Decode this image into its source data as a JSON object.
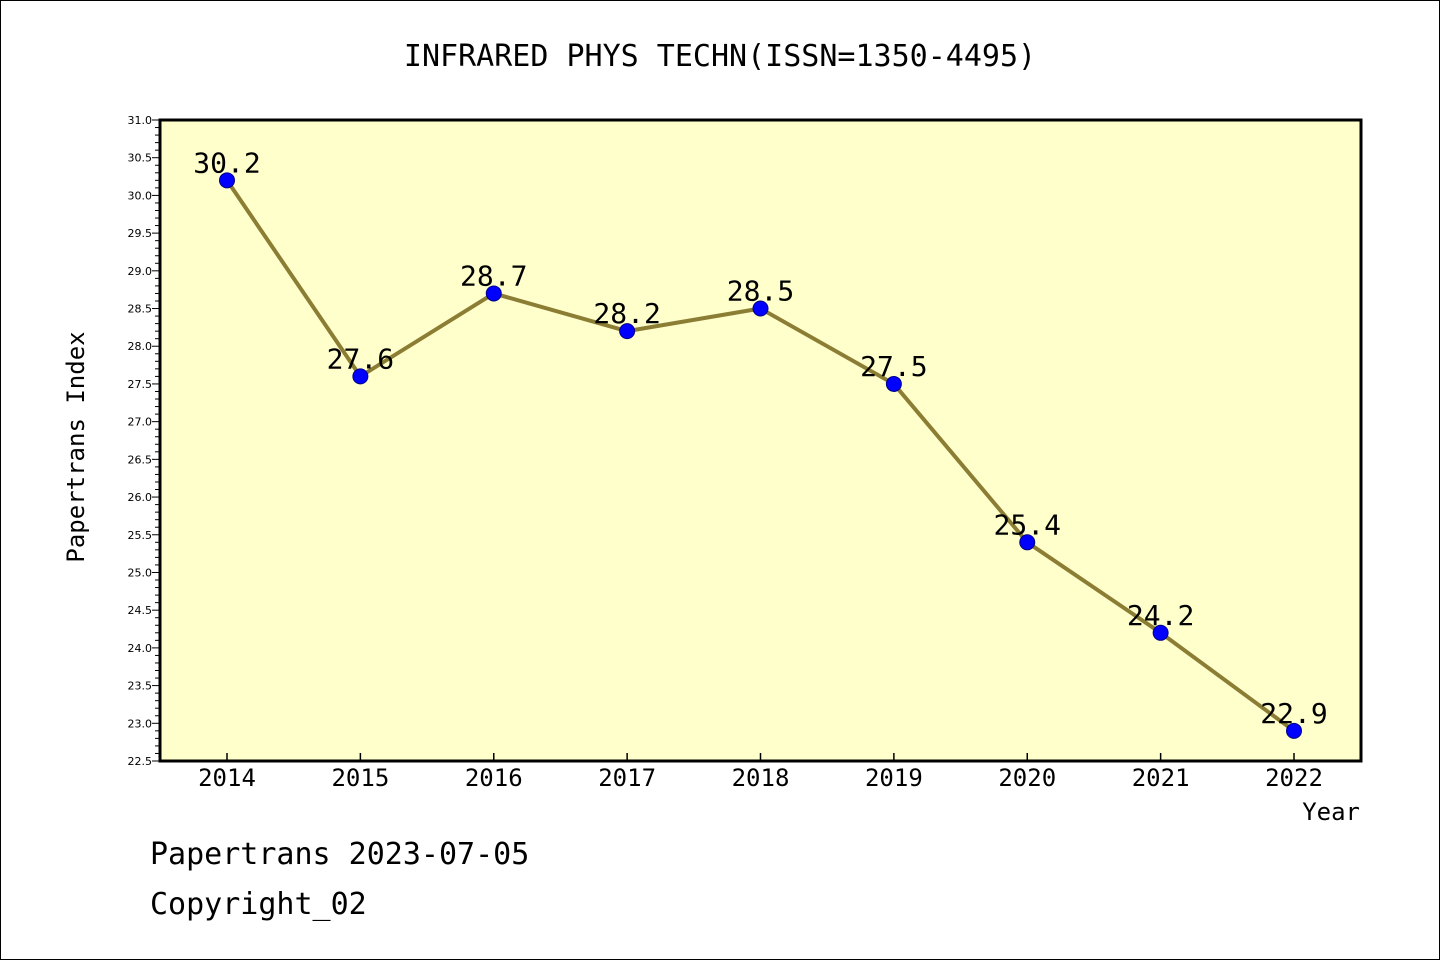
{
  "chart_data": {
    "type": "line",
    "title": "INFRARED PHYS TECHN(ISSN=1350-4495)",
    "xlabel": "Year",
    "ylabel": "Papertrans Index",
    "categories": [
      "2014",
      "2015",
      "2016",
      "2017",
      "2018",
      "2019",
      "2020",
      "2021",
      "2022"
    ],
    "values": [
      30.2,
      27.6,
      28.7,
      28.2,
      28.5,
      27.5,
      25.4,
      24.2,
      22.9
    ],
    "data_labels": [
      "30.2",
      "27.6",
      "28.7",
      "28.2",
      "28.5",
      "27.5",
      "25.4",
      "24.2",
      "22.9"
    ],
    "ylim": [
      22.5,
      31.0
    ],
    "ytick_labels": [
      "22.5",
      "23.0",
      "23.5",
      "24.0",
      "24.5",
      "25.0",
      "25.5",
      "26.0",
      "26.5",
      "27.0",
      "27.5",
      "28.0",
      "28.5",
      "29.0",
      "29.5",
      "30.0",
      "30.5",
      "31.0"
    ],
    "grid": false,
    "legend": "none",
    "colors": {
      "plot_background": "#ffffcc",
      "line": "#8b7d33",
      "marker": "#0000ff",
      "axis": "#000000"
    }
  },
  "footer": {
    "date_line": "Papertrans 2023-07-05",
    "copyright": "Copyright_02"
  }
}
